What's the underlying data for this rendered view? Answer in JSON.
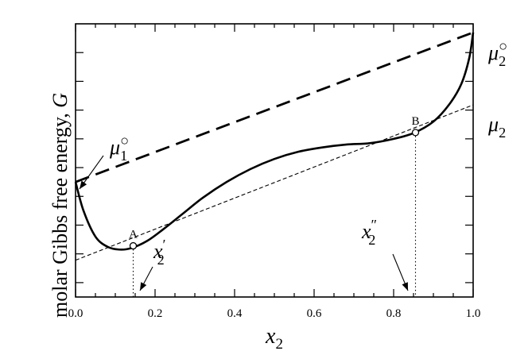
{
  "chart_data": {
    "type": "line",
    "title": "",
    "xlabel": "x",
    "xlabel_sub": "2",
    "ylabel": "molar Gibbs free energy, ",
    "ylabel_symbol": "G",
    "xlim": [
      0,
      1
    ],
    "x_ticks": [
      0.0,
      0.2,
      0.4,
      0.6,
      0.8,
      1.0
    ],
    "x_tick_labels": [
      "0.0",
      "0.2",
      "0.4",
      "0.6",
      "0.8",
      "1.0"
    ],
    "grid": false,
    "series": [
      {
        "style": "solid-thick",
        "x": [
          0.0,
          0.02,
          0.05,
          0.08,
          0.11,
          0.14,
          0.18,
          0.22,
          0.27,
          0.32,
          0.38,
          0.44,
          0.5,
          0.56,
          0.62,
          0.68,
          0.74,
          0.8,
          0.85,
          0.9,
          0.94,
          0.97,
          0.99,
          1.0
        ],
        "y": [
          0.4,
          0.3,
          0.21,
          0.175,
          0.165,
          0.17,
          0.195,
          0.235,
          0.29,
          0.345,
          0.4,
          0.445,
          0.48,
          0.505,
          0.52,
          0.53,
          0.535,
          0.55,
          0.57,
          0.61,
          0.67,
          0.74,
          0.83,
          0.92
        ]
      },
      {
        "style": "dashed-thick",
        "x": [
          0.0,
          1.0
        ],
        "y": [
          0.4,
          0.92
        ]
      },
      {
        "style": "dashed-thin",
        "x": [
          0.0,
          1.0
        ],
        "y": [
          0.128,
          0.668
        ]
      }
    ],
    "points": [
      {
        "label": "A",
        "x": 0.145,
        "y": 0.178
      },
      {
        "label": "B",
        "x": 0.855,
        "y": 0.572
      }
    ],
    "annotations": [
      {
        "symbol": "μ",
        "sub": "1",
        "sup": "○"
      },
      {
        "symbol": "μ",
        "sub": "2",
        "sup": "○"
      },
      {
        "symbol": "μ",
        "sub": "2",
        "sup": ""
      },
      {
        "symbol": "x",
        "sub": "2",
        "sup": "′"
      },
      {
        "symbol": "x",
        "sub": "2",
        "sup": "″"
      }
    ]
  }
}
